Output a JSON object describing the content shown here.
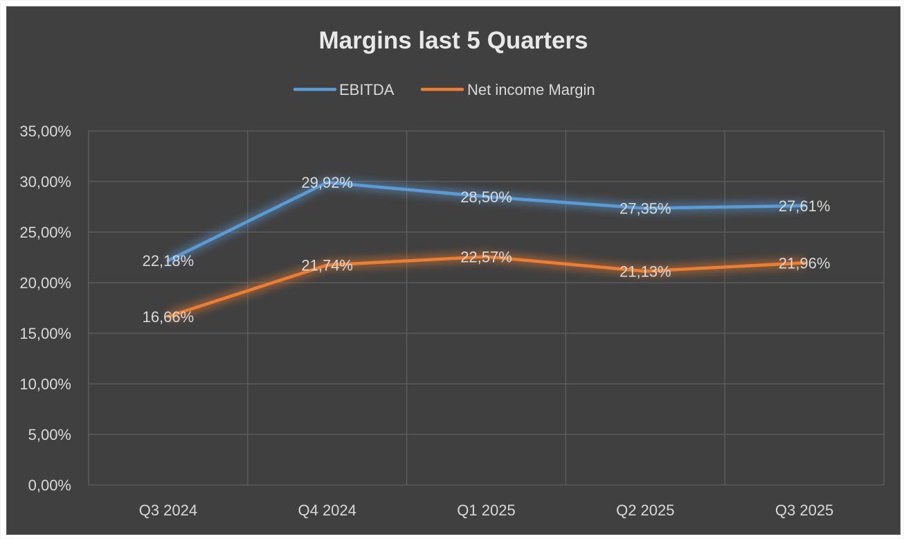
{
  "chart_data": {
    "type": "line",
    "title": "Margins last 5 Quarters",
    "categories": [
      "Q3 2024",
      "Q4 2024",
      "Q1 2025",
      "Q2 2025",
      "Q3 2025"
    ],
    "series": [
      {
        "name": "EBITDA",
        "color": "#5b9bd5",
        "values": [
          22.18,
          29.92,
          28.5,
          27.35,
          27.61
        ],
        "labels": [
          "22,18%",
          "29,92%",
          "28,50%",
          "27,35%",
          "27,61%"
        ]
      },
      {
        "name": "Net income Margin",
        "color": "#ed7d31",
        "values": [
          16.66,
          21.74,
          22.57,
          21.13,
          21.96
        ],
        "labels": [
          "16,66%",
          "21,74%",
          "22,57%",
          "21,13%",
          "21,96%"
        ]
      }
    ],
    "y_ticks": [
      0,
      5,
      10,
      15,
      20,
      25,
      30,
      35
    ],
    "y_tick_labels": [
      "0,00%",
      "5,00%",
      "10,00%",
      "15,00%",
      "20,00%",
      "25,00%",
      "30,00%",
      "35,00%"
    ],
    "ylim": [
      0,
      35
    ],
    "xlabel": "",
    "ylabel": "",
    "grid": true,
    "legend": "top-center"
  }
}
